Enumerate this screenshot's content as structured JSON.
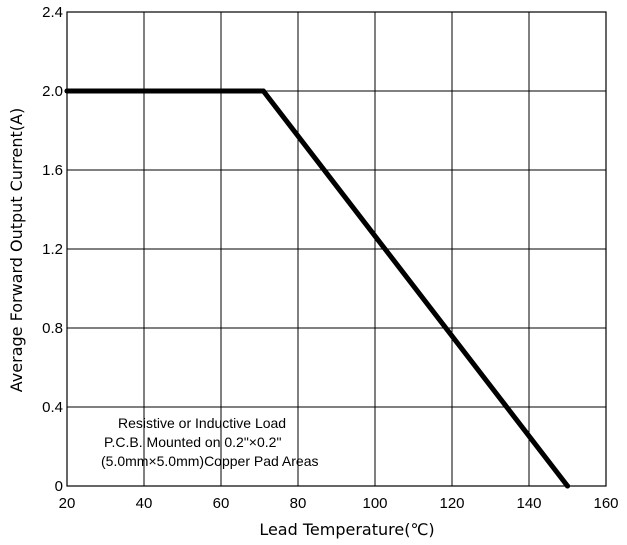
{
  "chart_data": {
    "type": "line",
    "title": "",
    "xlabel": "Lead Temperature(℃)",
    "ylabel": "Average Forward Output Current(A)",
    "xlim": [
      20,
      160
    ],
    "ylim": [
      0,
      2.4
    ],
    "grid": true,
    "x_ticks": [
      20,
      40,
      60,
      80,
      100,
      120,
      140,
      160
    ],
    "y_ticks": [
      0,
      0.4,
      0.8,
      1.2,
      1.6,
      2.0,
      2.4
    ],
    "x_tick_labels": [
      "20",
      "40",
      "60",
      "80",
      "100",
      "120",
      "140",
      "160"
    ],
    "y_tick_labels": [
      "0",
      "0.4",
      "0.8",
      "1.2",
      "1.6",
      "2.0",
      "2.4"
    ],
    "series": [
      {
        "x": [
          20,
          71,
          150
        ],
        "y": [
          2.0,
          2.0,
          0
        ]
      }
    ],
    "annotations": [
      "Resistive or Inductive Load",
      "P.C.B. Mounted on 0.2\"×0.2\"",
      "(5.0mm×5.0mm)Copper Pad Areas"
    ],
    "colors": {
      "line": "#000000",
      "grid": "#000000",
      "background": "#ffffff"
    }
  }
}
